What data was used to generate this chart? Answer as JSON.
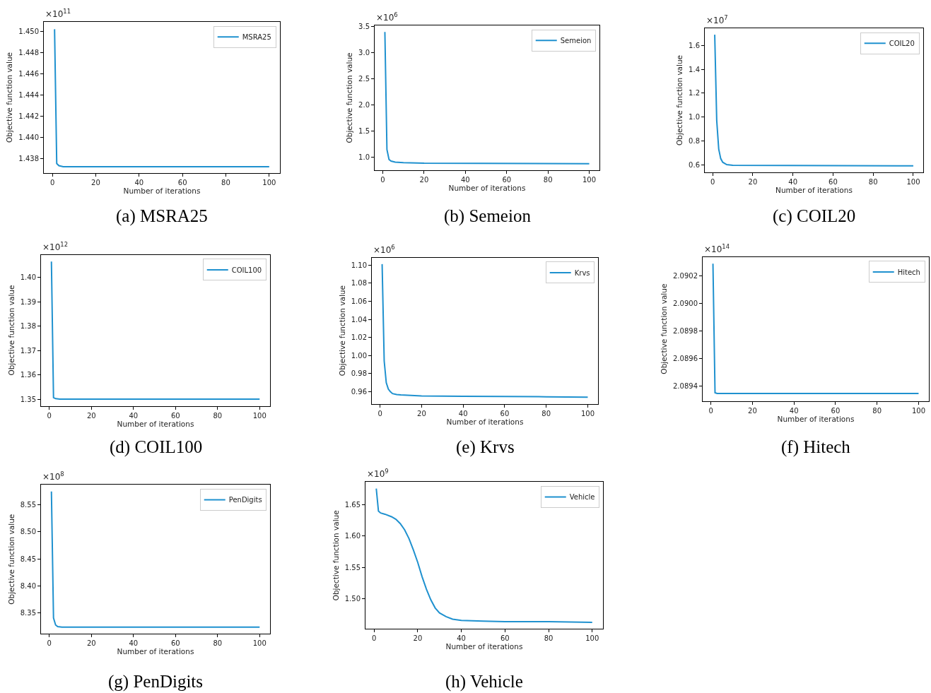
{
  "chart_data": [
    {
      "type": "line",
      "title": "(a) MSRA25",
      "xlabel": "Number of iterations",
      "ylabel": "Objective function value",
      "annotations": [
        "×10$^{11}$"
      ],
      "legend": "top right",
      "series": [
        {
          "name": "MSRA25",
          "color": "#1f91cf",
          "x": [
            1,
            2,
            3,
            5,
            10,
            100
          ],
          "values": [
            1.4502,
            1.4375,
            1.4373,
            1.4372,
            1.4372,
            1.4372
          ]
        }
      ],
      "xlim": [
        -3.95,
        104.95
      ],
      "xticks": [
        0,
        20,
        40,
        60,
        80,
        100
      ],
      "ylim": [
        1.4366,
        1.4509
      ],
      "yticks": [
        {
          "value": 1.438,
          "label": "1.438"
        },
        {
          "value": 1.44,
          "label": "1.440"
        },
        {
          "value": 1.442,
          "label": "1.442"
        },
        {
          "value": 1.444,
          "label": "1.444"
        },
        {
          "value": 1.446,
          "label": "1.446"
        },
        {
          "value": 1.448,
          "label": "1.448"
        },
        {
          "value": 1.45,
          "label": "1.450"
        }
      ]
    },
    {
      "type": "line",
      "title": "(b) Semeion",
      "xlabel": "Number of iterations",
      "ylabel": "Objective function value",
      "annotations": [
        "×10$^{6}$"
      ],
      "legend": "top right",
      "series": [
        {
          "name": "Semeion",
          "color": "#1f91cf",
          "x": [
            1,
            2,
            3,
            4,
            6,
            10,
            20,
            100
          ],
          "values": [
            3.4,
            1.15,
            0.96,
            0.93,
            0.91,
            0.9,
            0.89,
            0.88
          ]
        }
      ],
      "xlim": [
        -3.95,
        104.95
      ],
      "xticks": [
        0,
        20,
        40,
        60,
        80,
        100
      ],
      "ylim": [
        0.754,
        3.526
      ],
      "yticks": [
        {
          "value": 1.0,
          "label": "1.0"
        },
        1.5,
        {
          "value": 2.0,
          "label": "2.0"
        },
        2.5,
        {
          "value": 3.0,
          "label": "3.0"
        },
        3.5
      ]
    },
    {
      "type": "line",
      "title": "(c) COIL20",
      "xlabel": "Number of iterations",
      "ylabel": "Objective function value",
      "annotations": [
        "×10$^{7}$"
      ],
      "legend": "top right",
      "series": [
        {
          "name": "COIL20",
          "color": "#1f91cf",
          "x": [
            1,
            2,
            3,
            4,
            5,
            7,
            10,
            100
          ],
          "values": [
            1.69,
            0.97,
            0.73,
            0.65,
            0.62,
            0.6,
            0.595,
            0.59
          ]
        }
      ],
      "xlim": [
        -3.95,
        104.95
      ],
      "xticks": [
        0,
        20,
        40,
        60,
        80,
        100
      ],
      "ylim": [
        0.535,
        1.745
      ],
      "yticks": [
        0.6,
        0.8,
        {
          "value": 1.0,
          "label": "1.0"
        },
        1.2,
        1.4,
        1.6
      ]
    },
    {
      "type": "line",
      "title": "(d) COIL100",
      "xlabel": "Number of iterations",
      "ylabel": "Objective function value",
      "annotations": [
        "×10$^{12}$"
      ],
      "legend": "top right",
      "series": [
        {
          "name": "COIL100",
          "color": "#1f91cf",
          "x": [
            1,
            2,
            3,
            5,
            100
          ],
          "values": [
            1.4065,
            1.3506,
            1.3502,
            1.35,
            1.35
          ]
        }
      ],
      "xlim": [
        -3.95,
        104.95
      ],
      "xticks": [
        0,
        20,
        40,
        60,
        80,
        100
      ],
      "ylim": [
        1.3472,
        1.4093
      ],
      "yticks": [
        1.35,
        1.36,
        1.37,
        1.38,
        1.39,
        {
          "value": 1.4,
          "label": "1.40"
        }
      ]
    },
    {
      "type": "line",
      "title": "(e) Krvs",
      "xlabel": "Number of iterations",
      "ylabel": "Objective function value",
      "annotations": [
        "×10$^{6}$"
      ],
      "legend": "top right",
      "series": [
        {
          "name": "Krvs",
          "color": "#1f91cf",
          "x": [
            1,
            2,
            3,
            4,
            5,
            6,
            8,
            10,
            20,
            40,
            60,
            80,
            100
          ],
          "values": [
            1.101,
            0.994,
            0.97,
            0.963,
            0.96,
            0.958,
            0.957,
            0.9565,
            0.9555,
            0.955,
            0.9548,
            0.9545,
            0.954
          ]
        }
      ],
      "xlim": [
        -3.95,
        104.95
      ],
      "xticks": [
        0,
        20,
        40,
        60,
        80,
        100
      ],
      "ylim": [
        0.9467,
        1.1083
      ],
      "yticks": [
        0.96,
        0.98,
        {
          "value": 1.0,
          "label": "1.00"
        },
        1.02,
        1.04,
        1.06,
        1.08,
        {
          "value": 1.1,
          "label": "1.10"
        }
      ]
    },
    {
      "type": "line",
      "title": "(f) Hitech",
      "xlabel": "Number of iterations",
      "ylabel": "Objective function value",
      "annotations": [
        "×10$^{14}$"
      ],
      "legend": "top right",
      "series": [
        {
          "name": "Hitech",
          "color": "#1f91cf",
          "x": [
            1,
            2,
            3,
            100
          ],
          "values": [
            2.09029,
            2.08935,
            2.089345,
            2.089345
          ]
        }
      ],
      "xlim": [
        -3.95,
        104.95
      ],
      "xticks": [
        0,
        20,
        40,
        60,
        80,
        100
      ],
      "ylim": [
        2.08929,
        2.09034
      ],
      "yticks": [
        2.0894,
        2.0896,
        2.0898,
        {
          "value": 2.09,
          "label": "2.0900"
        },
        2.0902
      ]
    },
    {
      "type": "line",
      "title": "(g) PenDigits",
      "xlabel": "Number of iterations",
      "ylabel": "Objective function value",
      "annotations": [
        "×10$^{8}$"
      ],
      "legend": "top right",
      "series": [
        {
          "name": "PenDigits",
          "color": "#1f91cf",
          "x": [
            1,
            2,
            3,
            4,
            6,
            100
          ],
          "values": [
            8.575,
            8.34,
            8.327,
            8.324,
            8.323,
            8.323
          ]
        }
      ],
      "xlim": [
        -3.95,
        104.95
      ],
      "xticks": [
        0,
        20,
        40,
        60,
        80,
        100
      ],
      "ylim": [
        8.3104,
        8.5876
      ],
      "yticks": [
        8.35,
        {
          "value": 8.4,
          "label": "8.40"
        },
        8.45,
        {
          "value": 8.5,
          "label": "8.50"
        },
        8.55
      ]
    },
    {
      "type": "line",
      "title": "(h) Vehicle",
      "xlabel": "Number of iterations",
      "ylabel": "Objective function value",
      "annotations": [
        "×10$^{9}$"
      ],
      "legend": "top right",
      "series": [
        {
          "name": "Vehicle",
          "color": "#1f91cf",
          "x": [
            1,
            2,
            3,
            5,
            8,
            10,
            12,
            14,
            16,
            18,
            20,
            22,
            24,
            26,
            28,
            30,
            33,
            36,
            40,
            50,
            60,
            80,
            100
          ],
          "values": [
            1.676,
            1.64,
            1.637,
            1.635,
            1.631,
            1.627,
            1.62,
            1.61,
            1.596,
            1.578,
            1.558,
            1.535,
            1.515,
            1.498,
            1.485,
            1.477,
            1.471,
            1.467,
            1.465,
            1.464,
            1.463,
            1.463,
            1.462
          ]
        }
      ],
      "xlim": [
        -3.95,
        104.95
      ],
      "xticks": [
        0,
        20,
        40,
        60,
        80,
        100
      ],
      "ylim": [
        1.4513,
        1.6867
      ],
      "yticks": [
        {
          "value": 1.5,
          "label": "1.50"
        },
        1.55,
        {
          "value": 1.6,
          "label": "1.60"
        },
        1.65
      ]
    }
  ]
}
